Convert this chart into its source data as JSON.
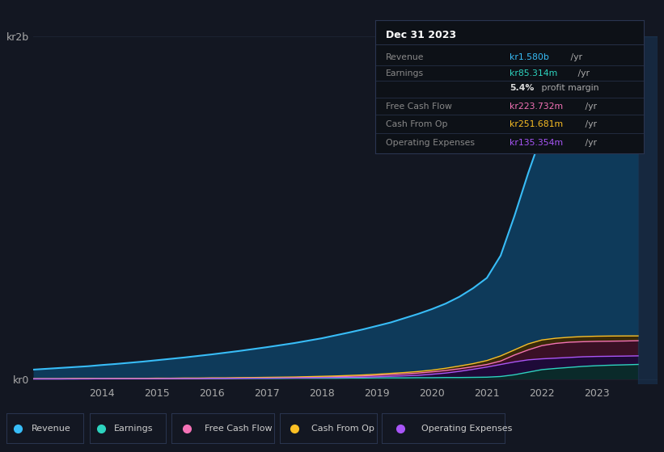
{
  "bg_color": "#131722",
  "plot_bg_color": "#131722",
  "grid_color": "#1e2535",
  "years": [
    2012.75,
    2013.0,
    2013.25,
    2013.5,
    2013.75,
    2014.0,
    2014.25,
    2014.5,
    2014.75,
    2015.0,
    2015.25,
    2015.5,
    2015.75,
    2016.0,
    2016.25,
    2016.5,
    2016.75,
    2017.0,
    2017.25,
    2017.5,
    2017.75,
    2018.0,
    2018.25,
    2018.5,
    2018.75,
    2019.0,
    2019.25,
    2019.5,
    2019.75,
    2020.0,
    2020.25,
    2020.5,
    2020.75,
    2021.0,
    2021.25,
    2021.5,
    2021.75,
    2022.0,
    2022.25,
    2022.5,
    2022.75,
    2023.0,
    2023.25,
    2023.5,
    2023.75
  ],
  "revenue": [
    55,
    60,
    65,
    70,
    75,
    82,
    88,
    95,
    102,
    110,
    118,
    126,
    135,
    144,
    154,
    164,
    175,
    186,
    198,
    210,
    224,
    238,
    255,
    272,
    290,
    310,
    330,
    355,
    380,
    408,
    440,
    480,
    530,
    590,
    720,
    950,
    1200,
    1430,
    1480,
    1520,
    1550,
    1560,
    1570,
    1575,
    1580
  ],
  "earnings": [
    1,
    1,
    1,
    1,
    2,
    2,
    2,
    2,
    2,
    2,
    3,
    3,
    3,
    3,
    3,
    4,
    4,
    4,
    4,
    5,
    5,
    5,
    5,
    6,
    6,
    7,
    7,
    7,
    8,
    8,
    9,
    9,
    10,
    11,
    15,
    25,
    40,
    55,
    62,
    68,
    74,
    78,
    81,
    83,
    85.314
  ],
  "free_cash_flow": [
    1,
    1,
    1,
    2,
    2,
    2,
    2,
    3,
    3,
    3,
    3,
    4,
    4,
    5,
    5,
    6,
    6,
    7,
    8,
    9,
    10,
    12,
    14,
    16,
    18,
    22,
    26,
    30,
    35,
    42,
    50,
    60,
    72,
    85,
    105,
    140,
    170,
    195,
    208,
    215,
    218,
    220,
    221,
    222,
    223.732
  ],
  "cash_from_op": [
    2,
    2,
    2,
    3,
    3,
    3,
    4,
    4,
    4,
    5,
    5,
    6,
    6,
    7,
    7,
    8,
    9,
    10,
    11,
    12,
    14,
    16,
    18,
    21,
    24,
    28,
    33,
    38,
    44,
    52,
    63,
    76,
    90,
    108,
    135,
    170,
    205,
    228,
    238,
    244,
    248,
    250,
    251,
    251.5,
    251.681
  ],
  "operating_expenses": [
    1,
    1,
    1,
    1,
    1,
    2,
    2,
    2,
    2,
    2,
    3,
    3,
    3,
    4,
    4,
    4,
    5,
    5,
    6,
    6,
    7,
    8,
    9,
    10,
    11,
    13,
    16,
    19,
    22,
    28,
    35,
    45,
    57,
    70,
    85,
    100,
    112,
    118,
    122,
    126,
    130,
    132,
    133,
    134,
    135.354
  ],
  "revenue_color": "#38bdf8",
  "earnings_color": "#2dd4bf",
  "fcf_color": "#f472b6",
  "cashop_color": "#fbbf24",
  "opex_color": "#a855f7",
  "revenue_fill": "#0e3a5a",
  "earnings_fill": "#0a2a2a",
  "fcf_fill": "#3a1025",
  "cashop_fill": "#3a2a08",
  "opex_fill": "#1e0a38",
  "ylabel_text": "kr2b",
  "y0_label": "kr0",
  "ylim_max": 2000,
  "ylim_min": -30,
  "xlim_min": 2012.75,
  "xlim_max": 2024.1,
  "xticks": [
    2014,
    2015,
    2016,
    2017,
    2018,
    2019,
    2020,
    2021,
    2022,
    2023
  ],
  "tooltip_title": "Dec 31 2023",
  "tooltip_bg": "#0d1117",
  "tooltip_border": "#2a3550",
  "legend_labels": [
    "Revenue",
    "Earnings",
    "Free Cash Flow",
    "Cash From Op",
    "Operating Expenses"
  ],
  "legend_colors": [
    "#38bdf8",
    "#2dd4bf",
    "#f472b6",
    "#fbbf24",
    "#a855f7"
  ]
}
